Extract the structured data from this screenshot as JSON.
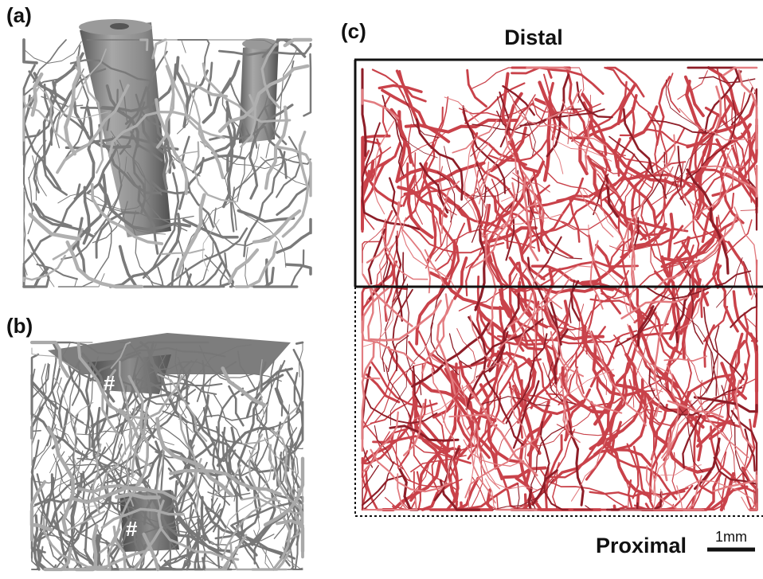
{
  "panels": [
    {
      "label": "(a)"
    },
    {
      "label": "(b)",
      "markers": [
        "#",
        "#"
      ]
    },
    {
      "label": "(c)",
      "top_label": "Distal",
      "bottom_label": "Proximal",
      "scale_bar": "1mm"
    }
  ]
}
